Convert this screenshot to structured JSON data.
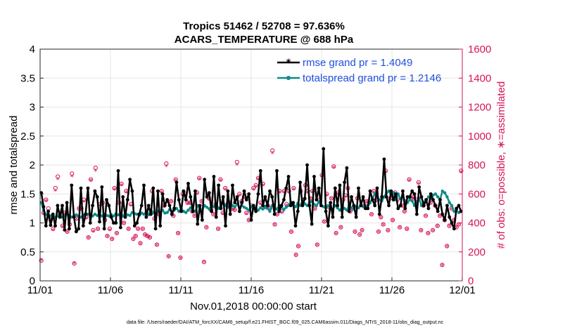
{
  "colors": {
    "rmse": "#000000",
    "spread": "#0e8a8a",
    "obs": "#d6135b",
    "legend_text": "#1f4fe0",
    "grid": "#e6e6e6"
  },
  "chart_data": {
    "type": "line",
    "title": "Tropics 51462 / 52708 = 97.636%",
    "subtitle": "ACARS_TEMPERATURE @ 688 hPa",
    "xlabel": "Nov.01,2018 00:00:00 start",
    "ylabel": "rmse and totalspread",
    "y2label": "# of obs: o=possible, ∗=assimilated",
    "footnote": "data file: /Users/raeder/DAI/ATM_forcXX/CAM6_setup/f.e21.FHIST_BGC.f09_025.CAM6assim.011/Diags_NTrS_2018-11/obs_diag_output.nc",
    "xlim": [
      0,
      30
    ],
    "ylim": [
      0,
      4
    ],
    "y2lim": [
      0,
      1600
    ],
    "xtick_values": [
      0,
      5,
      10,
      15,
      20,
      25,
      30
    ],
    "xtick_labels": [
      "11/01",
      "11/06",
      "11/11",
      "11/16",
      "11/21",
      "11/26",
      "12/01"
    ],
    "ytick_labels": [
      "0",
      "0.5",
      "1",
      "1.5",
      "2",
      "2.5",
      "3",
      "3.5",
      "4"
    ],
    "y2tick_labels": [
      "0",
      "200",
      "400",
      "600",
      "800",
      "1000",
      "1200",
      "1400",
      "1600"
    ],
    "legend_position": "top-right",
    "series": [
      {
        "name": "rmse",
        "legend": "rmse grand pr = 1.4049",
        "values": [
          1.52,
          1.28,
          0.95,
          1.2,
          0.96,
          1.15,
          0.95,
          1.3,
          1.1,
          1.3,
          0.88,
          1.35,
          0.9,
          1.65,
          1.1,
          0.85,
          0.9,
          1.6,
          0.95,
          1.15,
          1.6,
          1.0,
          1.3,
          1.55,
          1.45,
          1.02,
          1.62,
          0.9,
          1.4,
          1.3,
          1.1,
          1.0,
          1.0,
          1.9,
          0.92,
          1.45,
          1.1,
          1.4,
          1.75,
          1.55,
          0.95,
          1.0,
          1.15,
          1.3,
          1.65,
          1.1,
          1.3,
          1.15,
          1.6,
          0.9,
          1.55,
          0.95,
          1.5,
          1.3,
          1.4,
          1.3,
          1.15,
          1.25,
          1.7,
          1.4,
          1.2,
          1.55,
          1.4,
          1.68,
          1.45,
          1.2,
          1.55,
          0.98,
          1.3,
          1.05,
          1.75,
          1.45,
          1.52,
          1.2,
          1.8,
          1.1,
          1.65,
          1.25,
          1.45,
          0.95,
          1.55,
          1.15,
          1.65,
          1.35,
          1.45,
          1.2,
          1.35,
          1.55,
          1.4,
          1.5,
          1.05,
          1.3,
          1.2,
          1.5,
          1.9,
          1.3,
          1.45,
          1.3,
          1.55,
          1.45,
          1.15,
          1.9,
          1.2,
          1.3,
          1.4,
          1.6,
          1.8,
          1.3,
          1.35,
          0.95,
          1.2,
          1.7,
          1.3,
          1.42,
          2.0,
          1.3,
          0.98,
          1.8,
          1.4,
          1.6,
          1.3,
          2.28,
          1.2,
          0.95,
          1.35,
          1.1,
          1.6,
          1.3,
          1.65,
          1.1,
          1.7,
          1.95,
          1.2,
          1.45,
          1.3,
          1.1,
          1.6,
          1.3,
          1.45,
          1.25,
          1.25,
          1.55,
          1.4,
          1.3,
          1.6,
          1.15,
          1.45,
          2.1,
          1.45,
          1.3,
          1.55,
          1.4,
          1.5,
          1.25,
          1.3,
          1.55,
          1.25,
          1.45,
          1.45,
          1.55,
          1.5,
          1.15,
          1.62,
          1.45,
          1.3,
          1.4,
          1.25,
          1.5,
          1.4,
          1.3,
          1.2,
          1.4,
          1.15,
          1.05,
          1.3,
          1.1,
          1.0,
          0.9,
          1.25,
          1.3,
          1.2
        ]
      },
      {
        "name": "totalspread",
        "legend": "totalspread grand pr = 1.2146",
        "values": [
          1.35,
          1.22,
          1.15,
          1.1,
          1.12,
          1.13,
          1.1,
          1.12,
          1.15,
          1.1,
          1.12,
          1.15,
          1.13,
          1.1,
          1.12,
          1.14,
          1.12,
          1.1,
          1.13,
          1.16,
          1.15,
          1.14,
          1.12,
          1.15,
          1.13,
          1.14,
          1.12,
          1.15,
          1.13,
          1.12,
          1.14,
          1.12,
          1.16,
          1.14,
          1.13,
          1.12,
          1.16,
          1.14,
          1.13,
          1.18,
          1.16,
          1.15,
          1.13,
          1.17,
          1.15,
          1.19,
          1.14,
          1.22,
          1.18,
          1.16,
          1.2,
          1.18,
          1.22,
          1.17,
          1.18,
          1.23,
          1.2,
          1.22,
          1.25,
          1.2,
          1.24,
          1.2,
          1.18,
          1.22,
          1.26,
          1.22,
          1.2,
          1.3,
          1.25,
          1.22,
          1.3,
          1.27,
          1.24,
          1.3,
          1.28,
          1.33,
          1.25,
          1.3,
          1.35,
          1.3,
          1.27,
          1.35,
          1.3,
          1.28,
          1.32,
          1.26,
          1.3,
          1.27,
          1.25,
          1.22,
          1.28,
          1.24,
          1.26,
          1.22,
          1.26,
          1.24,
          1.28,
          1.25,
          1.2,
          1.3,
          1.27,
          1.24,
          1.3,
          1.28,
          1.23,
          1.27,
          1.3,
          1.36,
          1.32,
          1.28,
          1.34,
          1.3,
          1.38,
          1.33,
          1.3,
          1.35,
          1.37,
          1.32,
          1.3,
          1.36,
          1.3,
          1.28,
          1.26,
          1.3,
          1.27,
          1.24,
          1.3,
          1.26,
          1.22,
          1.28,
          1.25,
          1.22,
          1.3,
          1.26,
          1.24,
          1.28,
          1.26,
          1.3,
          1.28,
          1.25,
          1.3,
          1.35,
          1.42,
          1.5,
          1.45,
          1.4,
          1.38,
          1.45,
          1.52,
          1.55,
          1.48,
          1.52,
          1.4,
          1.5,
          1.42,
          1.46,
          1.38,
          1.35,
          1.4,
          1.38,
          1.3,
          1.35,
          1.42,
          1.3,
          1.36,
          1.38,
          1.45,
          1.42,
          1.48,
          1.5,
          1.45,
          1.4,
          1.55,
          1.52,
          1.45,
          1.35,
          1.3,
          1.2,
          1.22,
          1.18,
          1.2
        ]
      }
    ],
    "obs_series": [
      {
        "name": "possible",
        "marker": "o",
        "values": [
          140,
          470,
          560,
          500,
          420,
          360,
          640,
          720,
          470,
          380,
          470,
          340,
          390,
          740,
          120,
          430,
          500,
          500,
          560,
          440,
          300,
          700,
          350,
          780,
          360,
          530,
          540,
          420,
          310,
          360,
          290,
          640,
          330,
          540,
          670,
          400,
          620,
          360,
          530,
          290,
          310,
          360,
          260,
          360,
          320,
          310,
          300,
          620,
          430,
          250,
          460,
          620,
          520,
          810,
          170,
          550,
          450,
          700,
          330,
          160,
          600,
          600,
          540,
          540,
          480,
          450,
          610,
          710,
          550,
          130,
          370,
          570,
          490,
          460,
          530,
          360,
          700,
          470,
          640,
          530,
          540,
          500,
          490,
          820,
          600,
          550,
          580,
          470,
          420,
          520,
          640,
          660,
          710,
          540,
          670,
          510,
          520,
          500,
          900,
          390,
          460,
          620,
          480,
          620,
          530,
          620,
          340,
          640,
          180,
          240,
          620,
          560,
          660,
          620,
          570,
          620,
          500,
          250,
          560,
          730,
          410,
          600,
          510,
          570,
          790,
          330,
          610,
          370,
          560,
          590,
          640,
          480,
          500,
          340,
          570,
          320,
          350,
          520,
          550,
          540,
          460,
          620,
          560,
          340,
          440,
          390,
          760,
          350,
          570,
          420,
          610,
          560,
          370,
          520,
          480,
          360,
          700,
          570,
          580,
          560,
          680,
          350,
          520,
          450,
          330,
          540,
          350,
          520,
          380,
          450,
          110,
          420,
          240,
          380,
          500,
          420,
          370,
          390,
          760
        ]
      },
      {
        "name": "assimilated",
        "marker": "*",
        "values": [
          140,
          460,
          550,
          480,
          415,
          350,
          620,
          700,
          460,
          370,
          460,
          335,
          385,
          720,
          118,
          425,
          495,
          490,
          545,
          430,
          295,
          690,
          340,
          760,
          355,
          520,
          535,
          410,
          305,
          350,
          285,
          630,
          325,
          530,
          660,
          395,
          610,
          355,
          520,
          285,
          305,
          355,
          255,
          355,
          315,
          305,
          295,
          610,
          420,
          245,
          455,
          610,
          510,
          790,
          165,
          545,
          445,
          690,
          325,
          155,
          590,
          590,
          530,
          530,
          470,
          445,
          600,
          700,
          545,
          128,
          365,
          560,
          485,
          455,
          520,
          355,
          690,
          460,
          630,
          520,
          535,
          495,
          485,
          800,
          590,
          540,
          570,
          460,
          415,
          510,
          630,
          650,
          700,
          530,
          660,
          505,
          515,
          495,
          880,
          385,
          455,
          610,
          470,
          610,
          520,
          610,
          335,
          630,
          175,
          235,
          610,
          550,
          650,
          610,
          565,
          610,
          495,
          245,
          550,
          720,
          405,
          590,
          505,
          565,
          780,
          325,
          600,
          365,
          550,
          580,
          630,
          475,
          495,
          335,
          565,
          315,
          345,
          515,
          545,
          535,
          455,
          610,
          555,
          335,
          435,
          385,
          750,
          345,
          565,
          415,
          600,
          550,
          365,
          515,
          475,
          355,
          690,
          565,
          570,
          550,
          670,
          345,
          515,
          445,
          325,
          535,
          345,
          515,
          375,
          445,
          105,
          415,
          235,
          375,
          495,
          415,
          365,
          385,
          750
        ]
      }
    ]
  }
}
